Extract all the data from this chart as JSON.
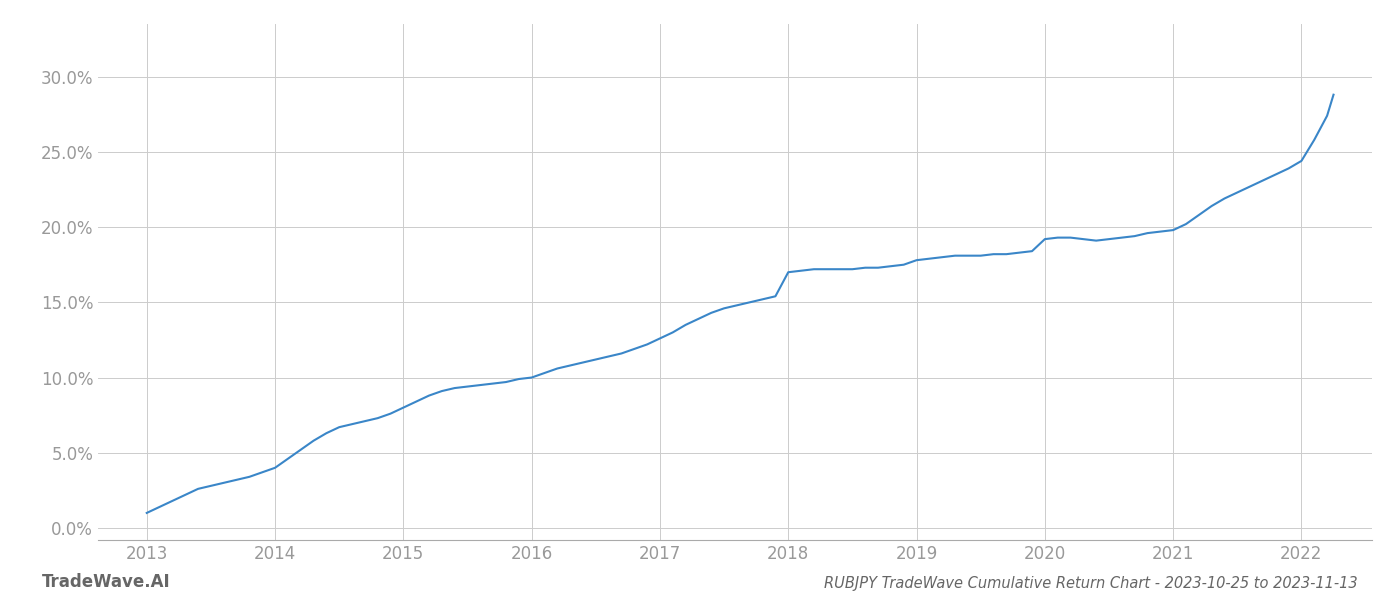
{
  "title": "RUBJPY TradeWave Cumulative Return Chart - 2023-10-25 to 2023-11-13",
  "watermark": "TradeWave.AI",
  "line_color": "#3a86c8",
  "background_color": "#ffffff",
  "grid_color": "#cccccc",
  "x_years": [
    2013,
    2014,
    2015,
    2016,
    2017,
    2018,
    2019,
    2020,
    2021,
    2022
  ],
  "y_ticks": [
    0.0,
    0.05,
    0.1,
    0.15,
    0.2,
    0.25,
    0.3
  ],
  "xlim": [
    2012.62,
    2022.55
  ],
  "ylim": [
    -0.008,
    0.335
  ],
  "x_data": [
    2013.0,
    2013.1,
    2013.2,
    2013.3,
    2013.4,
    2013.5,
    2013.6,
    2013.7,
    2013.8,
    2013.9,
    2014.0,
    2014.1,
    2014.2,
    2014.3,
    2014.4,
    2014.5,
    2014.6,
    2014.7,
    2014.8,
    2014.9,
    2015.0,
    2015.1,
    2015.2,
    2015.3,
    2015.4,
    2015.5,
    2015.6,
    2015.7,
    2015.8,
    2015.9,
    2016.0,
    2016.1,
    2016.2,
    2016.3,
    2016.4,
    2016.5,
    2016.6,
    2016.7,
    2016.8,
    2016.9,
    2017.0,
    2017.1,
    2017.2,
    2017.3,
    2017.4,
    2017.5,
    2017.6,
    2017.7,
    2017.8,
    2017.9,
    2018.0,
    2018.1,
    2018.2,
    2018.3,
    2018.4,
    2018.5,
    2018.6,
    2018.7,
    2018.8,
    2018.9,
    2019.0,
    2019.1,
    2019.2,
    2019.3,
    2019.4,
    2019.5,
    2019.6,
    2019.7,
    2019.8,
    2019.9,
    2020.0,
    2020.1,
    2020.2,
    2020.3,
    2020.4,
    2020.5,
    2020.6,
    2020.7,
    2020.8,
    2020.9,
    2021.0,
    2021.1,
    2021.2,
    2021.3,
    2021.4,
    2021.5,
    2021.6,
    2021.7,
    2021.8,
    2021.9,
    2022.0,
    2022.1,
    2022.2,
    2022.25
  ],
  "y_data": [
    0.01,
    0.014,
    0.018,
    0.022,
    0.026,
    0.028,
    0.03,
    0.032,
    0.034,
    0.037,
    0.04,
    0.046,
    0.052,
    0.058,
    0.063,
    0.067,
    0.069,
    0.071,
    0.073,
    0.076,
    0.08,
    0.084,
    0.088,
    0.091,
    0.093,
    0.094,
    0.095,
    0.096,
    0.097,
    0.099,
    0.1,
    0.103,
    0.106,
    0.108,
    0.11,
    0.112,
    0.114,
    0.116,
    0.119,
    0.122,
    0.126,
    0.13,
    0.135,
    0.139,
    0.143,
    0.146,
    0.148,
    0.15,
    0.152,
    0.154,
    0.17,
    0.171,
    0.172,
    0.172,
    0.172,
    0.172,
    0.173,
    0.173,
    0.174,
    0.175,
    0.178,
    0.179,
    0.18,
    0.181,
    0.181,
    0.181,
    0.182,
    0.182,
    0.183,
    0.184,
    0.192,
    0.193,
    0.193,
    0.192,
    0.191,
    0.192,
    0.193,
    0.194,
    0.196,
    0.197,
    0.198,
    0.202,
    0.208,
    0.214,
    0.219,
    0.223,
    0.227,
    0.231,
    0.235,
    0.239,
    0.244,
    0.258,
    0.274,
    0.288
  ],
  "title_fontsize": 10.5,
  "tick_fontsize": 12,
  "watermark_fontsize": 12,
  "tick_color": "#999999",
  "spine_color": "#aaaaaa",
  "title_color": "#666666",
  "watermark_color": "#666666"
}
